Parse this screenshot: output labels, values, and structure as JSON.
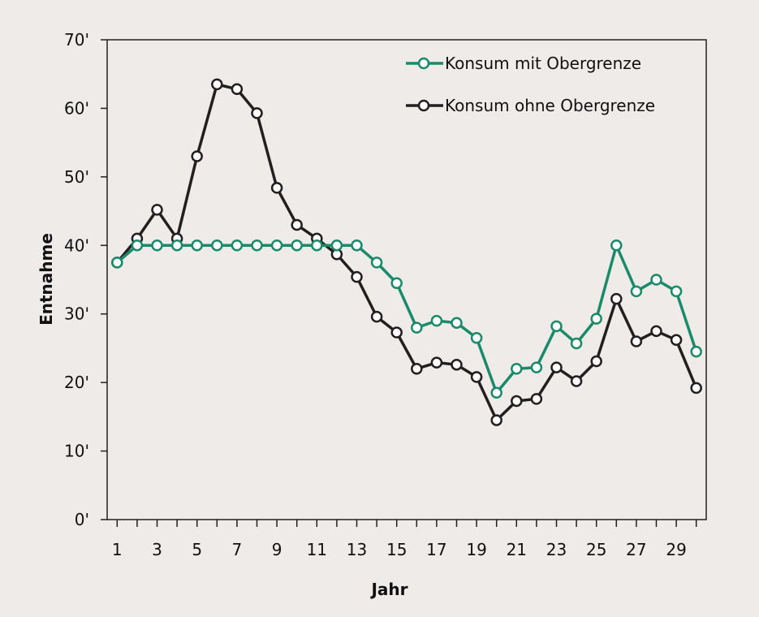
{
  "chart_data": {
    "type": "line",
    "xlabel": "Jahr",
    "ylabel": "Entnahme",
    "xlim": [
      0.5,
      30.5
    ],
    "ylim": [
      0,
      70
    ],
    "x_ticks": [
      1,
      3,
      5,
      7,
      9,
      11,
      13,
      15,
      17,
      19,
      21,
      23,
      25,
      27,
      29
    ],
    "y_ticks": [
      0,
      10,
      20,
      30,
      40,
      50,
      60,
      70
    ],
    "y_tick_labels": [
      "0'",
      "10'",
      "20'",
      "30'",
      "40'",
      "50'",
      "60'",
      "70'"
    ],
    "grid": false,
    "legend": "top-right",
    "x": [
      1,
      2,
      3,
      4,
      5,
      6,
      7,
      8,
      9,
      10,
      11,
      12,
      13,
      14,
      15,
      16,
      17,
      18,
      19,
      20,
      21,
      22,
      23,
      24,
      25,
      26,
      27,
      28,
      29,
      30
    ],
    "series": [
      {
        "name": "Konsum mit Obergrenze",
        "color": "#1a8a6a",
        "values": [
          37.5,
          40,
          40,
          40,
          40,
          40,
          40,
          40,
          40,
          40,
          40,
          40,
          40,
          37.5,
          34.5,
          28,
          29,
          28.7,
          26.5,
          18.5,
          22,
          22.2,
          28.2,
          25.7,
          29.3,
          40,
          33.3,
          35,
          33.3,
          24.5
        ]
      },
      {
        "name": "Konsum ohne Obergrenze",
        "color": "#231f20",
        "values": [
          37.5,
          41,
          45.2,
          41,
          53,
          63.5,
          62.8,
          59.3,
          48.4,
          43,
          41,
          38.7,
          35.4,
          29.6,
          27.3,
          22,
          22.9,
          22.6,
          20.8,
          14.5,
          17.3,
          17.6,
          22.2,
          20.2,
          23.1,
          32.2,
          26,
          27.5,
          26.2,
          19.2
        ]
      }
    ]
  }
}
